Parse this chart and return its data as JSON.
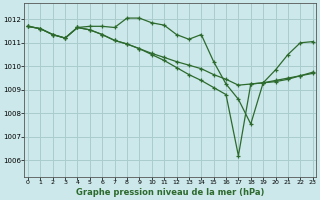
{
  "title": "Graphe pression niveau de la mer (hPa)",
  "bg_color": "#cce8ea",
  "grid_color": "#aacccc",
  "line_color": "#2d6a2d",
  "x_ticks": [
    0,
    1,
    2,
    3,
    4,
    5,
    6,
    7,
    8,
    9,
    10,
    11,
    12,
    13,
    14,
    15,
    16,
    17,
    18,
    19,
    20,
    21,
    22,
    23
  ],
  "y_ticks": [
    1006,
    1007,
    1008,
    1009,
    1010,
    1011,
    1012
  ],
  "ylim": [
    1005.3,
    1012.7
  ],
  "xlim": [
    -0.3,
    23.3
  ],
  "line1": [
    1011.7,
    1011.6,
    1011.35,
    1011.2,
    1011.65,
    1011.7,
    1011.7,
    1011.65,
    1012.05,
    1012.05,
    1011.85,
    1011.75,
    1011.35,
    1011.15,
    1011.35,
    1010.2,
    1009.25,
    1008.6,
    1007.55,
    1009.3,
    1009.85,
    1010.5,
    1011.0,
    1011.05
  ],
  "line2": [
    1011.7,
    1011.6,
    1011.35,
    1011.2,
    1011.65,
    1011.55,
    1011.35,
    1011.1,
    1010.95,
    1010.75,
    1010.5,
    1010.25,
    1009.95,
    1009.65,
    1009.4,
    1009.1,
    1008.8,
    1006.2,
    1009.25,
    1009.3,
    1009.4,
    1009.5,
    1009.6,
    1009.7
  ],
  "line3": [
    1011.7,
    1011.6,
    1011.35,
    1011.2,
    1011.65,
    1011.55,
    1011.35,
    1011.1,
    1010.95,
    1010.75,
    1010.55,
    1010.38,
    1010.2,
    1010.05,
    1009.9,
    1009.65,
    1009.45,
    1009.2,
    1009.25,
    1009.3,
    1009.35,
    1009.45,
    1009.6,
    1009.75
  ]
}
